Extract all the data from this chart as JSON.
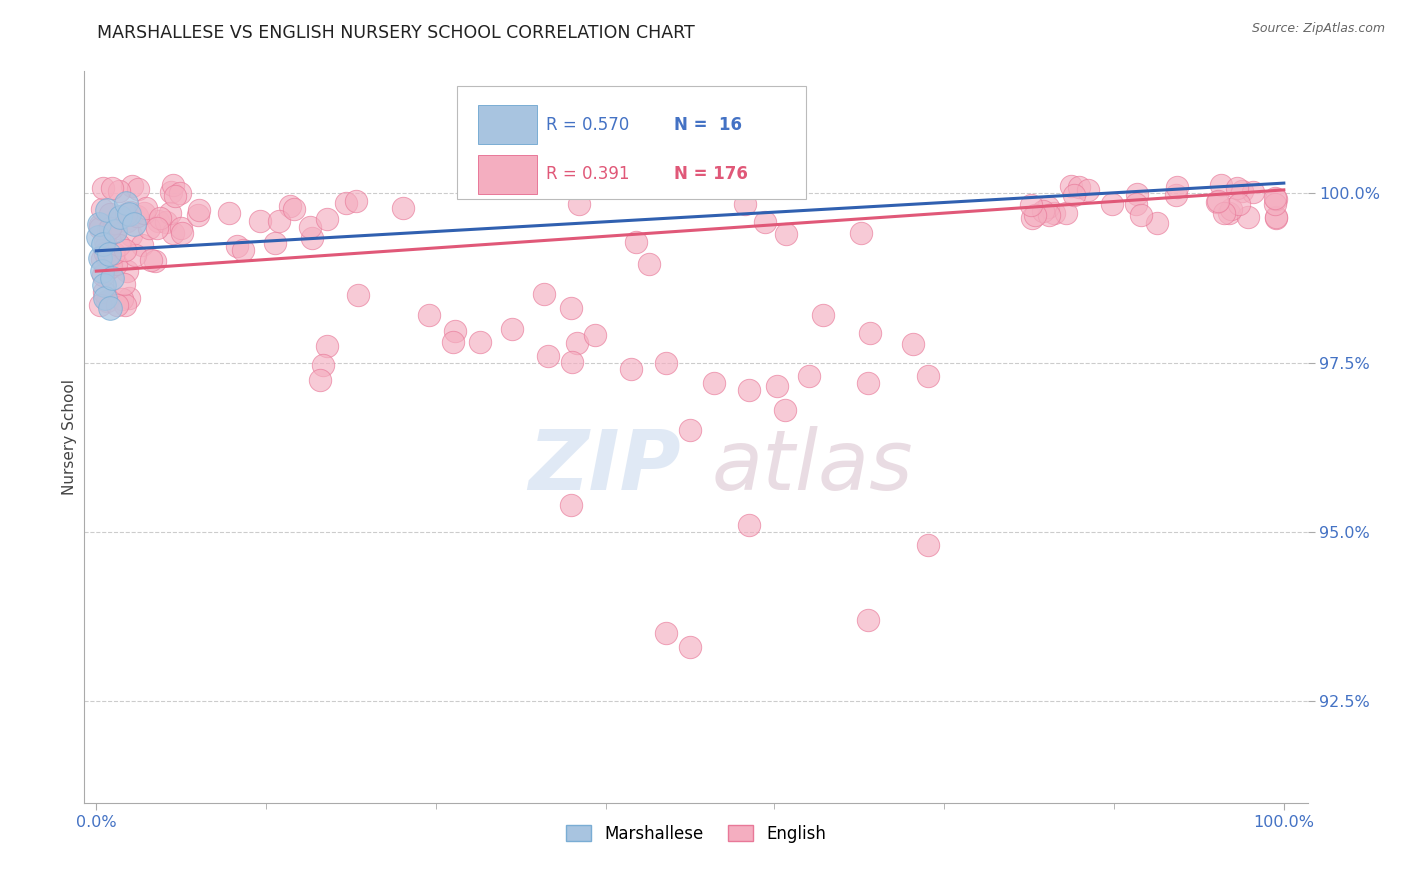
{
  "title": "MARSHALLESE VS ENGLISH NURSERY SCHOOL CORRELATION CHART",
  "source": "Source: ZipAtlas.com",
  "ylabel": "Nursery School",
  "blue_color": "#a8c4e0",
  "pink_color": "#f4aec0",
  "blue_edge_color": "#7aadd4",
  "pink_edge_color": "#e87898",
  "blue_line_color": "#3060b0",
  "pink_line_color": "#e05878",
  "blue_label": "Marshallese",
  "pink_label": "English",
  "R_blue": 0.57,
  "N_blue": 16,
  "R_pink": 0.391,
  "N_pink": 176,
  "axis_color": "#4472c4",
  "title_color": "#222222",
  "yticks": [
    92.5,
    95.0,
    97.5,
    100.0
  ],
  "xlim": [
    -1.0,
    102.0
  ],
  "ylim": [
    91.0,
    101.8
  ],
  "blue_trend_x0": 0,
  "blue_trend_y0": 99.15,
  "blue_trend_x1": 100,
  "blue_trend_y1": 100.15,
  "pink_trend_x0": 0,
  "pink_trend_y0": 98.85,
  "pink_trend_x1": 100,
  "pink_trend_y1": 100.05,
  "marshallese_x": [
    0.15,
    0.25,
    0.35,
    0.45,
    0.55,
    0.65,
    0.75,
    0.9,
    1.05,
    1.3,
    1.6,
    2.0,
    2.5,
    1.2,
    2.8,
    3.2
  ],
  "marshallese_y": [
    99.35,
    99.55,
    99.05,
    98.85,
    99.25,
    98.65,
    98.45,
    99.75,
    99.1,
    98.75,
    99.45,
    99.65,
    99.85,
    98.3,
    99.7,
    99.55
  ]
}
